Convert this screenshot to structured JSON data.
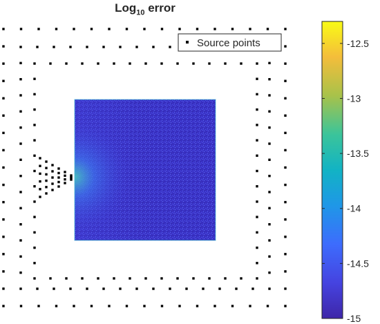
{
  "chart_data": {
    "type": "heatmap",
    "title_main": "Log",
    "title_sub": "10",
    "title_rest": " error",
    "legend": {
      "entries": [
        "Source points"
      ],
      "placement": "top-right"
    },
    "colorbar": {
      "ticks": [
        -12.5,
        -13,
        -13.5,
        -14,
        -14.5,
        -15
      ],
      "tick_labels": [
        "-12.5",
        "-13",
        "-13.5",
        "-14",
        "-14.5",
        "-15"
      ],
      "range": [
        -15,
        -12.3
      ],
      "colormap": "parula"
    },
    "heatmap": {
      "typical_value": -14.9,
      "hotspot": "left edge center",
      "hotspot_value": -13.8
    },
    "colors": {
      "low": "#3e26a8",
      "mid": "#12b3c4",
      "high": "#f9fb15",
      "points": "#000000"
    }
  }
}
